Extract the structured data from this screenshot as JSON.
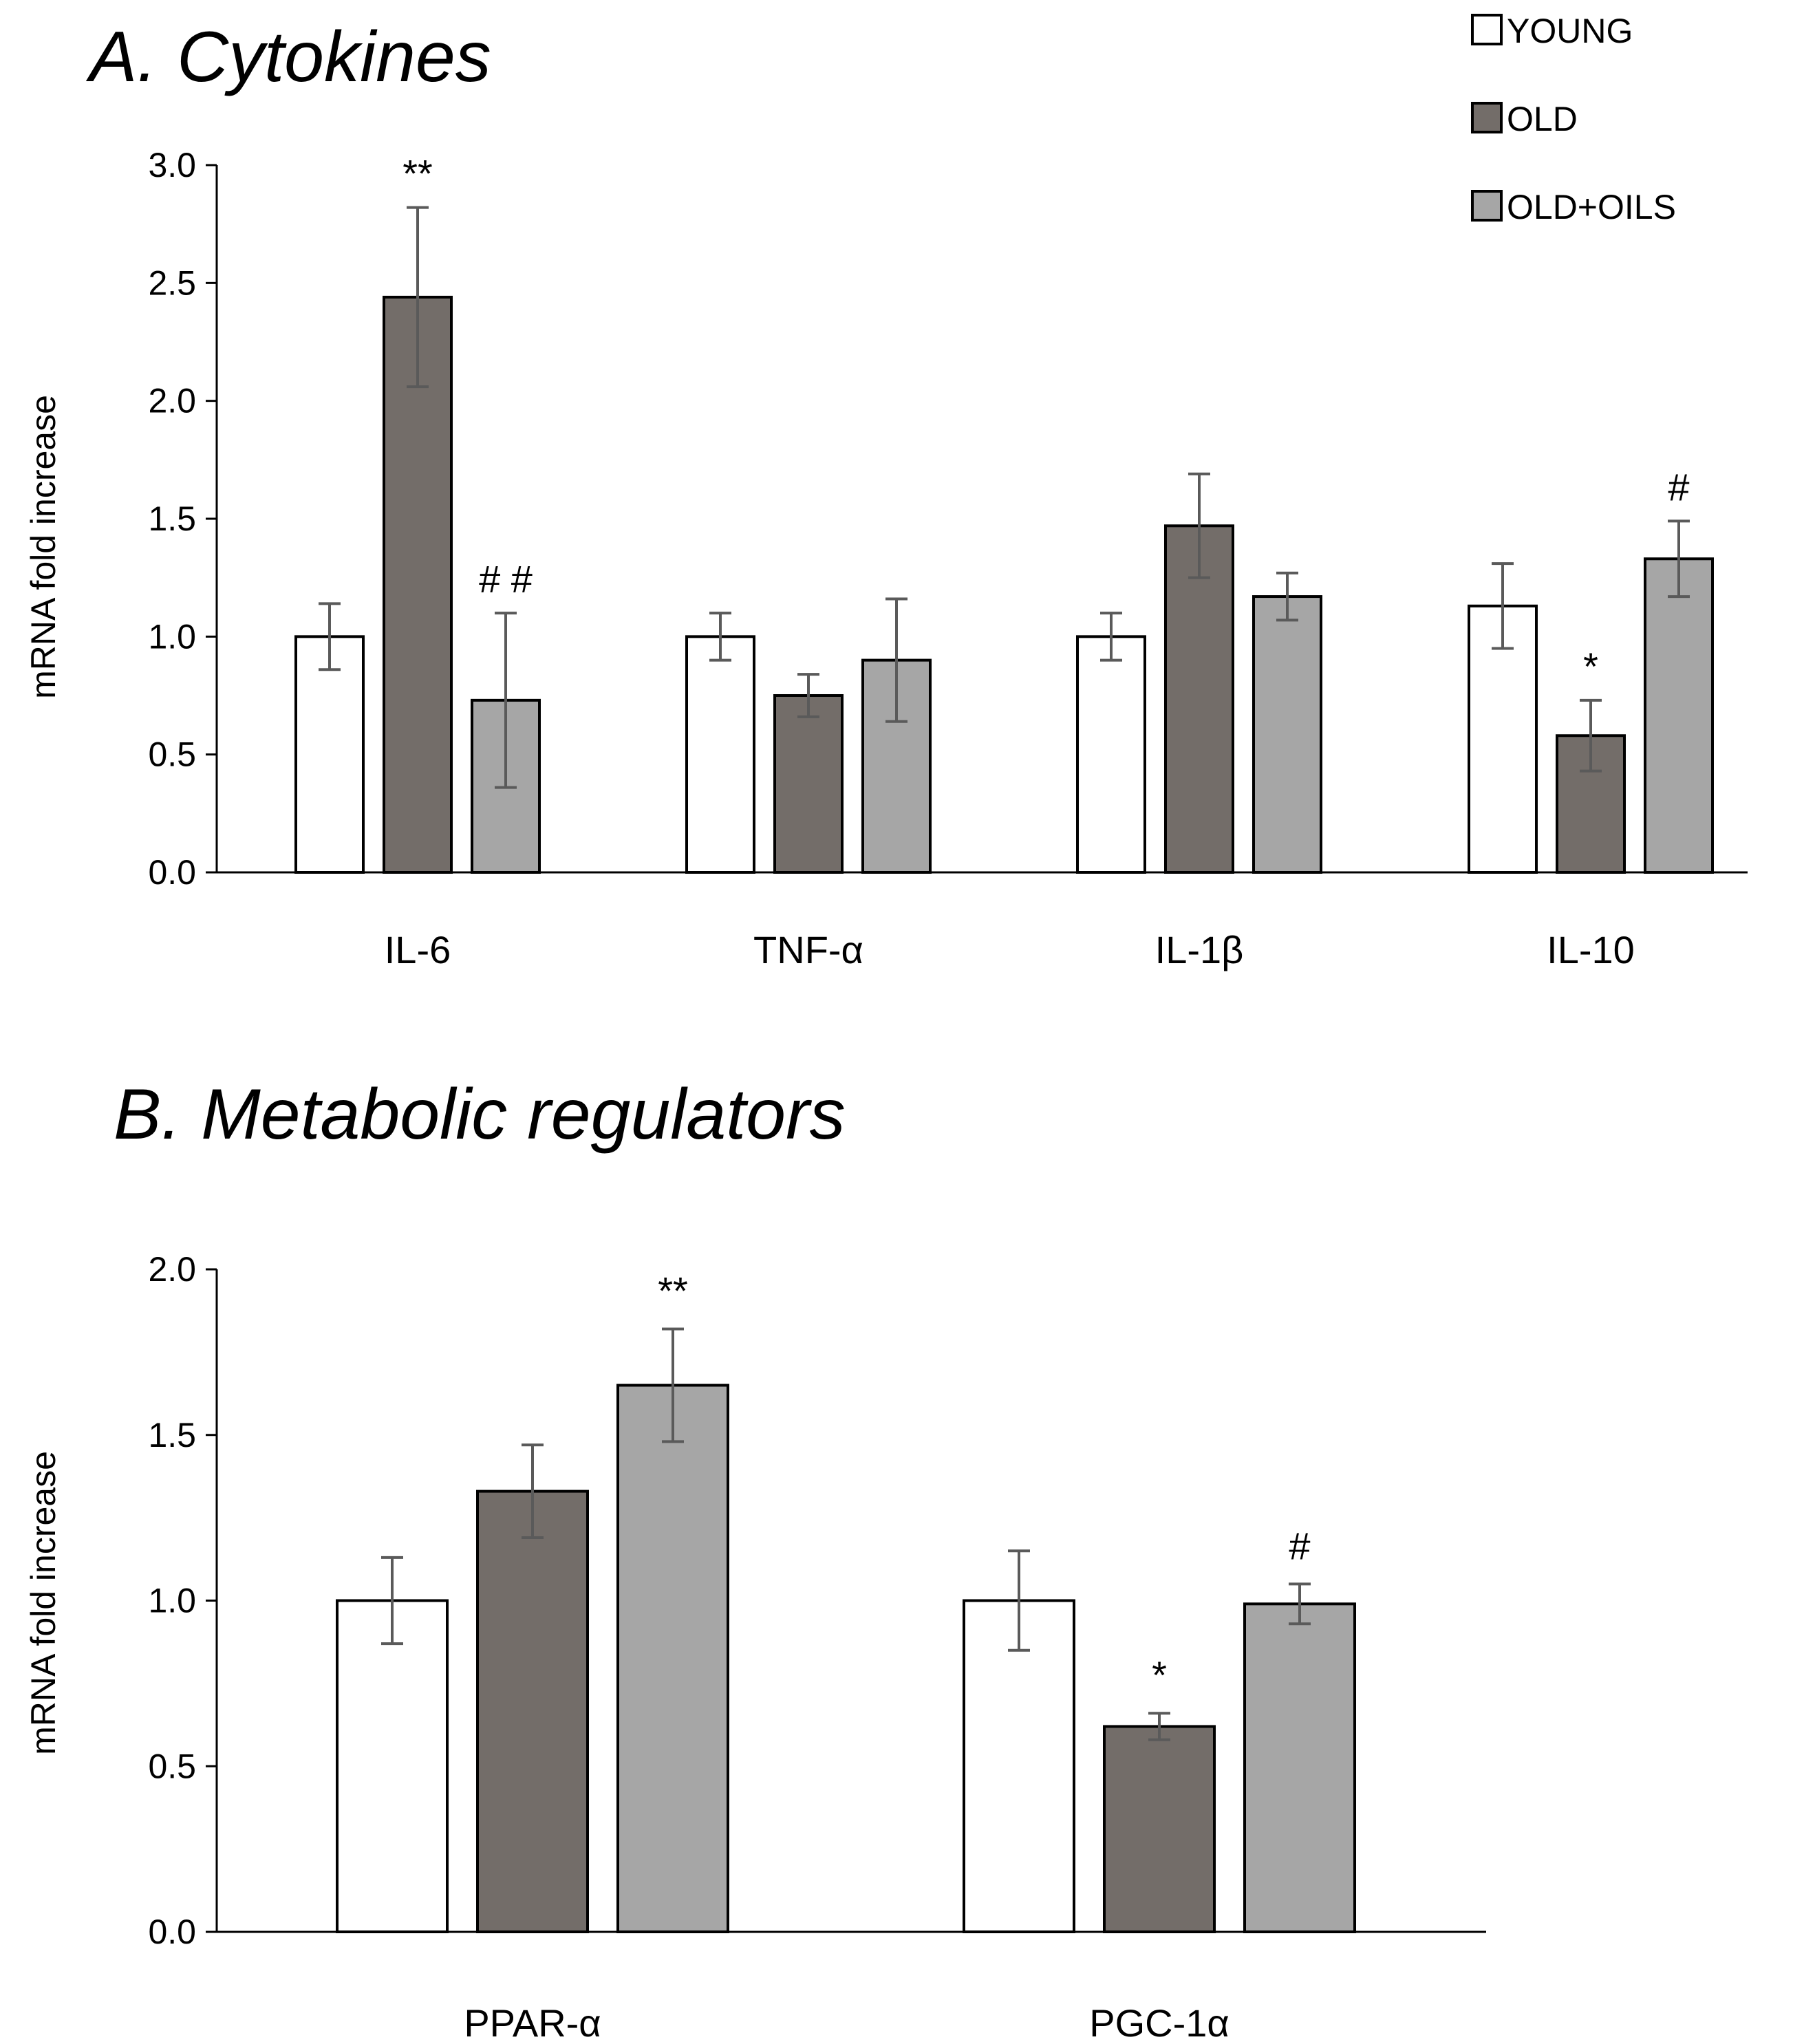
{
  "legend": {
    "items": [
      {
        "label": "YOUNG",
        "color": "#ffffff"
      },
      {
        "label": "OLD",
        "color": "#736d69"
      },
      {
        "label": "OLD+OILS",
        "color": "#a6a6a6"
      }
    ]
  },
  "chart_data": [
    {
      "type": "bar",
      "title": "A. Cytokines",
      "xlabel": "",
      "ylabel": "mRNA fold increase",
      "ylim": [
        0,
        3.0
      ],
      "yticks": [
        "0.0",
        "0.5",
        "1.0",
        "1.5",
        "2.0",
        "2.5",
        "3.0"
      ],
      "categories": [
        "IL-6",
        "TNF-α",
        "IL-1β",
        "IL-10"
      ],
      "series": [
        {
          "name": "YOUNG",
          "values": [
            1.0,
            1.0,
            1.0,
            1.13
          ],
          "errors": [
            0.14,
            0.1,
            0.1,
            0.18
          ],
          "annotations": [
            "",
            "",
            "",
            ""
          ]
        },
        {
          "name": "OLD",
          "values": [
            2.44,
            0.75,
            1.47,
            0.58
          ],
          "errors": [
            0.38,
            0.09,
            0.22,
            0.15
          ],
          "annotations": [
            "**",
            "",
            "",
            "*"
          ]
        },
        {
          "name": "OLD+OILS",
          "values": [
            0.73,
            0.9,
            1.17,
            1.33
          ],
          "errors": [
            0.37,
            0.26,
            0.1,
            0.16
          ],
          "annotations": [
            "# #",
            "",
            "",
            "#"
          ]
        }
      ]
    },
    {
      "type": "bar",
      "title": "B. Metabolic regulators",
      "xlabel": "",
      "ylabel": "mRNA fold increase",
      "ylim": [
        0,
        2.0
      ],
      "yticks": [
        "0.0",
        "0.5",
        "1.0",
        "1.5",
        "2.0"
      ],
      "categories": [
        "PPAR-α",
        "PGC-1α"
      ],
      "series": [
        {
          "name": "YOUNG",
          "values": [
            1.0,
            1.0
          ],
          "errors": [
            0.13,
            0.15
          ],
          "annotations": [
            "",
            ""
          ]
        },
        {
          "name": "OLD",
          "values": [
            1.33,
            0.62
          ],
          "errors": [
            0.14,
            0.04
          ],
          "annotations": [
            "",
            "*"
          ]
        },
        {
          "name": "OLD+OILS",
          "values": [
            1.65,
            0.99
          ],
          "errors": [
            0.17,
            0.06
          ],
          "annotations": [
            "**",
            "#"
          ]
        }
      ]
    }
  ]
}
